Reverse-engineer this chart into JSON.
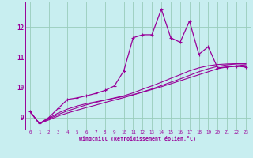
{
  "xlabel": "Windchill (Refroidissement éolien,°C)",
  "background_color": "#c8eef0",
  "grid_color": "#99ccbb",
  "line_color": "#990099",
  "x_values": [
    0,
    1,
    2,
    3,
    4,
    5,
    6,
    7,
    8,
    9,
    10,
    11,
    12,
    13,
    14,
    15,
    16,
    17,
    18,
    19,
    20,
    21,
    22,
    23
  ],
  "series1": [
    9.2,
    8.8,
    9.0,
    9.3,
    9.6,
    9.65,
    9.72,
    9.8,
    9.9,
    10.05,
    10.55,
    11.65,
    11.75,
    11.75,
    12.6,
    11.65,
    11.5,
    12.2,
    11.1,
    11.35,
    10.65,
    10.68,
    10.7,
    10.68
  ],
  "series2": [
    9.2,
    8.8,
    8.98,
    9.15,
    9.28,
    9.38,
    9.46,
    9.52,
    9.58,
    9.64,
    9.7,
    9.76,
    9.84,
    9.93,
    10.02,
    10.12,
    10.22,
    10.32,
    10.42,
    10.52,
    10.62,
    10.68,
    10.72,
    10.75
  ],
  "series3": [
    9.2,
    8.8,
    8.95,
    9.1,
    9.22,
    9.32,
    9.42,
    9.5,
    9.58,
    9.65,
    9.72,
    9.82,
    9.94,
    10.05,
    10.17,
    10.3,
    10.42,
    10.55,
    10.65,
    10.72,
    10.76,
    10.78,
    10.79,
    10.78
  ],
  "series4": [
    9.2,
    8.8,
    8.92,
    9.05,
    9.15,
    9.24,
    9.33,
    9.41,
    9.5,
    9.58,
    9.66,
    9.75,
    9.85,
    9.95,
    10.06,
    10.17,
    10.28,
    10.4,
    10.52,
    10.62,
    10.7,
    10.75,
    10.78,
    10.79
  ],
  "xlim": [
    -0.5,
    23.5
  ],
  "ylim": [
    8.6,
    12.85
  ],
  "xticks": [
    0,
    1,
    2,
    3,
    4,
    5,
    6,
    7,
    8,
    9,
    10,
    11,
    12,
    13,
    14,
    15,
    16,
    17,
    18,
    19,
    20,
    21,
    22,
    23
  ],
  "yticks": [
    9,
    10,
    11,
    12
  ]
}
